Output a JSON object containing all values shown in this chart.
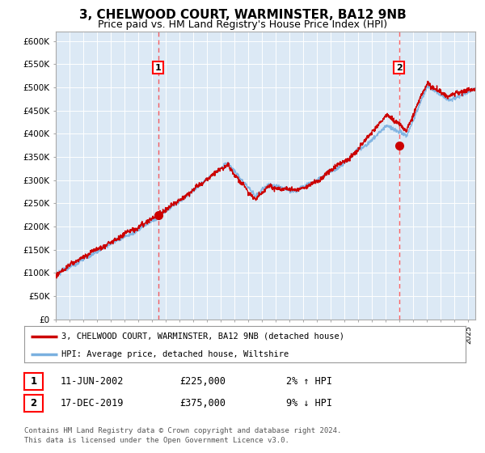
{
  "title": "3, CHELWOOD COURT, WARMINSTER, BA12 9NB",
  "subtitle": "Price paid vs. HM Land Registry's House Price Index (HPI)",
  "title_fontsize": 11,
  "subtitle_fontsize": 9,
  "plot_bg_color": "#dce9f5",
  "hpi_color": "#7ab0e0",
  "price_color": "#cc0000",
  "ylim": [
    0,
    620000
  ],
  "yticks": [
    0,
    50000,
    100000,
    150000,
    200000,
    250000,
    300000,
    350000,
    400000,
    450000,
    500000,
    550000,
    600000
  ],
  "ytick_labels": [
    "£0",
    "£50K",
    "£100K",
    "£150K",
    "£200K",
    "£250K",
    "£300K",
    "£350K",
    "£400K",
    "£450K",
    "£500K",
    "£550K",
    "£600K"
  ],
  "sale1_date": 2002.44,
  "sale1_price": 225000,
  "sale2_date": 2019.96,
  "sale2_price": 375000,
  "legend_line1": "3, CHELWOOD COURT, WARMINSTER, BA12 9NB (detached house)",
  "legend_line2": "HPI: Average price, detached house, Wiltshire",
  "table_row1": [
    "1",
    "11-JUN-2002",
    "£225,000",
    "2% ↑ HPI"
  ],
  "table_row2": [
    "2",
    "17-DEC-2019",
    "£375,000",
    "9% ↓ HPI"
  ],
  "footnote1": "Contains HM Land Registry data © Crown copyright and database right 2024.",
  "footnote2": "This data is licensed under the Open Government Licence v3.0.",
  "xmin": 1995.0,
  "xmax": 2025.5
}
